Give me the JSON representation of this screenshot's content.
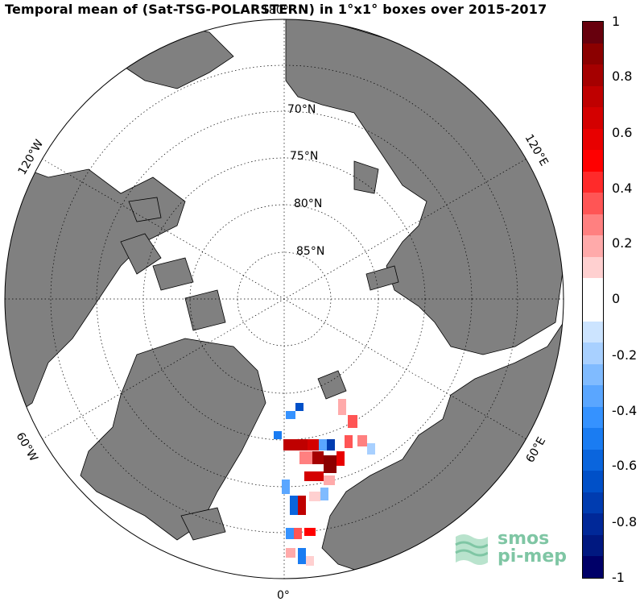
{
  "title": "Temporal mean of (Sat-TSG-POLARSTERN) in 1°x1° boxes over 2015-2017",
  "lat_labels": [
    "70°N",
    "75°N",
    "80°N",
    "85°N"
  ],
  "lon_labels": {
    "top": "180°",
    "left_upper": "120°W",
    "right_upper": "120°E",
    "left_lower": "60°W",
    "right_lower": "60°E",
    "bottom": "0°"
  },
  "colorbar": {
    "ticks": [
      "1",
      "0.8",
      "0.6",
      "0.4",
      "0.2",
      "0",
      "-0.2",
      "-0.4",
      "-0.6",
      "-0.8",
      "-1"
    ],
    "colors": [
      "#67000d",
      "#8b0000",
      "#a50000",
      "#bf0000",
      "#d40000",
      "#e80000",
      "#ff0000",
      "#ff2a2a",
      "#ff5555",
      "#ff8080",
      "#ffaaaa",
      "#ffd0d0",
      "#ffffff",
      "#ffffff",
      "#cce4ff",
      "#a8d0ff",
      "#80bbff",
      "#5aa6ff",
      "#3592ff",
      "#1a7cf2",
      "#0a65dd",
      "#0050c8",
      "#003cb0",
      "#002898",
      "#001880",
      "#000068"
    ]
  },
  "logo": {
    "line1": "smos",
    "line2": "pi-mep"
  },
  "colors": {
    "land": "#808080",
    "ocean": "#ffffff"
  }
}
